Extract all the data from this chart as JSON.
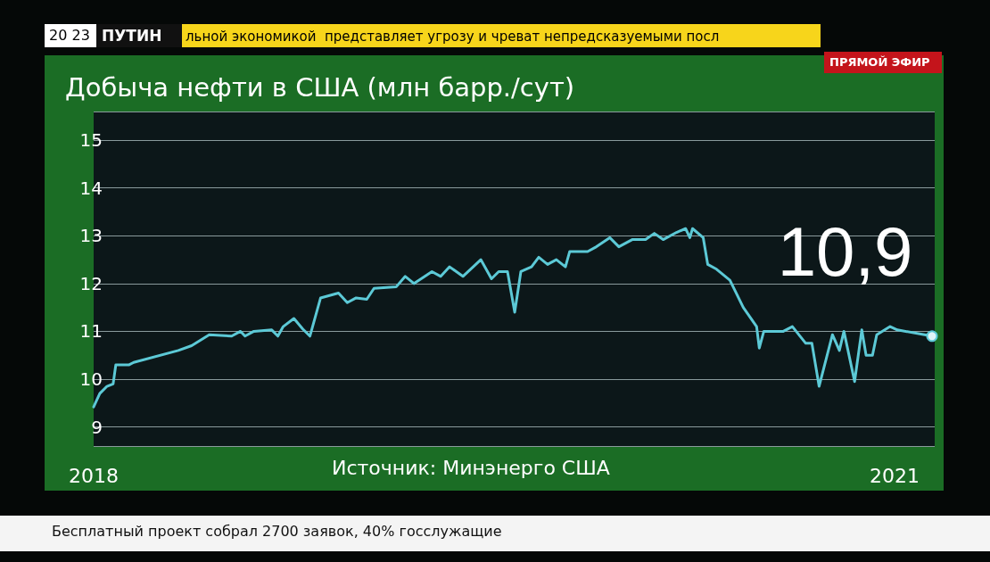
{
  "chart_data": {
    "type": "line",
    "title": "Добыча нефти в США (млн барр./сут)",
    "x": [
      2018.0,
      2018.023,
      2018.05,
      2018.073,
      2018.083,
      2018.133,
      2018.15,
      2018.317,
      2018.367,
      2018.433,
      2018.517,
      2018.55,
      2018.567,
      2018.6,
      2018.667,
      2018.69,
      2018.71,
      2018.75,
      2018.783,
      2018.81,
      2018.85,
      2018.917,
      2018.95,
      2018.983,
      2019.023,
      2019.05,
      2019.133,
      2019.167,
      2019.2,
      2019.267,
      2019.3,
      2019.333,
      2019.383,
      2019.45,
      2019.49,
      2019.517,
      2019.55,
      2019.577,
      2019.6,
      2019.64,
      2019.667,
      2019.7,
      2019.733,
      2019.767,
      2019.783,
      2019.85,
      2019.883,
      2019.933,
      2019.967,
      2020.017,
      2020.067,
      2020.1,
      2020.133,
      2020.183,
      2020.217,
      2020.233,
      2020.243,
      2020.283,
      2020.3,
      2020.333,
      2020.383,
      2020.433,
      2020.483,
      2020.493,
      2020.51,
      2020.583,
      2020.617,
      2020.667,
      2020.69,
      2020.717,
      2020.767,
      2020.793,
      2020.81,
      2020.85,
      2020.877,
      2020.893,
      2020.917,
      2020.933,
      2020.983,
      2021.01,
      2021.14
    ],
    "series": [
      {
        "color": "#5cc9d6",
        "values": [
          9.42,
          9.7,
          9.85,
          9.9,
          10.3,
          10.3,
          10.35,
          10.6,
          10.7,
          10.93,
          10.9,
          11.0,
          10.9,
          11.0,
          11.03,
          10.9,
          11.1,
          11.27,
          11.05,
          10.9,
          11.7,
          11.8,
          11.6,
          11.7,
          11.67,
          11.9,
          11.93,
          12.15,
          12.0,
          12.25,
          12.15,
          12.35,
          12.15,
          12.5,
          12.1,
          12.25,
          12.25,
          11.4,
          12.25,
          12.35,
          12.55,
          12.4,
          12.5,
          12.35,
          12.67,
          12.67,
          12.77,
          12.96,
          12.77,
          12.92,
          12.92,
          13.05,
          12.92,
          13.07,
          13.15,
          12.96,
          13.15,
          12.96,
          12.4,
          12.3,
          12.07,
          11.5,
          11.1,
          10.65,
          11.0,
          11.0,
          11.1,
          10.75,
          10.75,
          9.85,
          10.93,
          10.6,
          11.0,
          9.95,
          11.03,
          10.5,
          10.5,
          10.93,
          11.1,
          11.03,
          10.9
        ]
      }
    ],
    "xlim": [
      2018,
      2021.15
    ],
    "xticks": [
      2018,
      2021
    ],
    "ylim": [
      8.6,
      15.6
    ],
    "yticks": [
      9,
      10,
      11,
      12,
      13,
      14,
      15
    ],
    "grid": "y",
    "marker": "none",
    "line_style": "solid",
    "annotations": [
      {
        "text": "10,9",
        "x": 2021.14,
        "y": 10.9
      },
      "Источник: Минэнерго США",
      "20 23",
      "ПУТИН",
      "льной экономикой  представляет угрозу и чреват непредсказуемыми посл",
      "ПРЯМОЙ ЭФИР",
      "Бесплатный проект собрал 2700 заявок, 40% госслужащие"
    ]
  }
}
